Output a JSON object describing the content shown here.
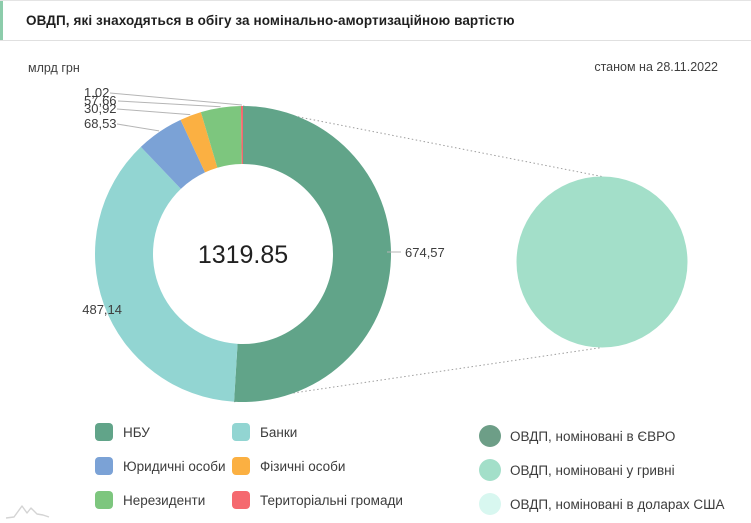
{
  "header": {
    "title": "ОВДП, які знаходяться в обігу за номінально-амортизаційною вартістю"
  },
  "meta": {
    "unit_label": "млрд грн",
    "date_label": "станом на 28.11.2022"
  },
  "chart_data": {
    "type": "pie",
    "subtype": "donut-with-breakdown-circle",
    "title": "ОВДП, які знаходяться в обігу за номінально-амортизаційною вартістю",
    "unit": "млрд грн",
    "as_of": "станом на 28.11.2022",
    "center_total": "1319.85",
    "donut": {
      "categories": [
        "НБУ",
        "Банки",
        "Юридичні особи",
        "Фізичні особи",
        "Нерезиденти",
        "Територіальні громади"
      ],
      "values": [
        674.57,
        487.14,
        68.53,
        30.92,
        57.66,
        1.02
      ],
      "value_labels": [
        "674,57",
        "487,14",
        "68,53",
        "30,92",
        "57,66",
        "1,02"
      ],
      "colors": [
        "#61a489",
        "#92d5d2",
        "#7ba2d6",
        "#fbb042",
        "#7dc67e",
        "#f5696f"
      ]
    },
    "breakdown": {
      "source_category": "НБУ",
      "full_circle_label": "ОВДП, номіновані у гривні",
      "full_circle_color": "#a3dfc9"
    }
  },
  "legend": {
    "left": {
      "items": [
        {
          "label": "НБУ",
          "color": "#61a489"
        },
        {
          "label": "Банки",
          "color": "#92d5d2"
        },
        {
          "label": "Юридичні особи",
          "color": "#7ba2d6"
        },
        {
          "label": "Фізичні особи",
          "color": "#fbb042"
        },
        {
          "label": "Нерезиденти",
          "color": "#7dc67e"
        },
        {
          "label": "Територіальні громади",
          "color": "#f5696f"
        }
      ]
    },
    "right": {
      "items": [
        {
          "label": "ОВДП, номіновані в ЄВРО",
          "color": "#6d9e87"
        },
        {
          "label": "ОВДП, номіновані у гривні",
          "color": "#a3dfc9"
        },
        {
          "label": "ОВДП, номіновані в доларах США",
          "color": "#d8f7f0"
        }
      ]
    }
  }
}
